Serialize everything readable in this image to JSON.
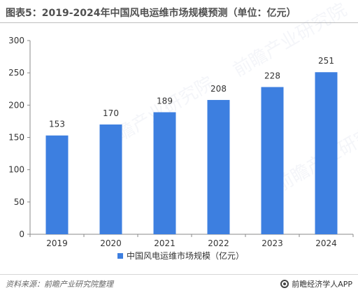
{
  "title": "图表5：2019-2024年中国风电运维市场规模预测（单位：亿元）",
  "source_label": "资料来源：前瞻产业研究院整理",
  "brand_label": "前瞻经济学人APP",
  "watermark_text": "前瞻产业研究院",
  "colors": {
    "bar": "#3d7fe0",
    "axis": "#888888",
    "text": "#333333"
  },
  "chart_data": {
    "type": "bar",
    "title": "图表5：2019-2024年中国风电运维市场规模预测（单位：亿元）",
    "categories": [
      "2019",
      "2020",
      "2021",
      "2022",
      "2023",
      "2024"
    ],
    "series": [
      {
        "name": "中国风电运维市场规模（亿元）",
        "values": [
          153,
          170,
          189,
          208,
          228,
          251
        ]
      }
    ],
    "ylim": [
      0,
      300
    ],
    "yticks": [
      0,
      50,
      100,
      150,
      200,
      250,
      300
    ],
    "grid": false,
    "legend": "bottom-center",
    "data_labels": [
      "153",
      "170",
      "189",
      "208",
      "228",
      "251"
    ]
  }
}
